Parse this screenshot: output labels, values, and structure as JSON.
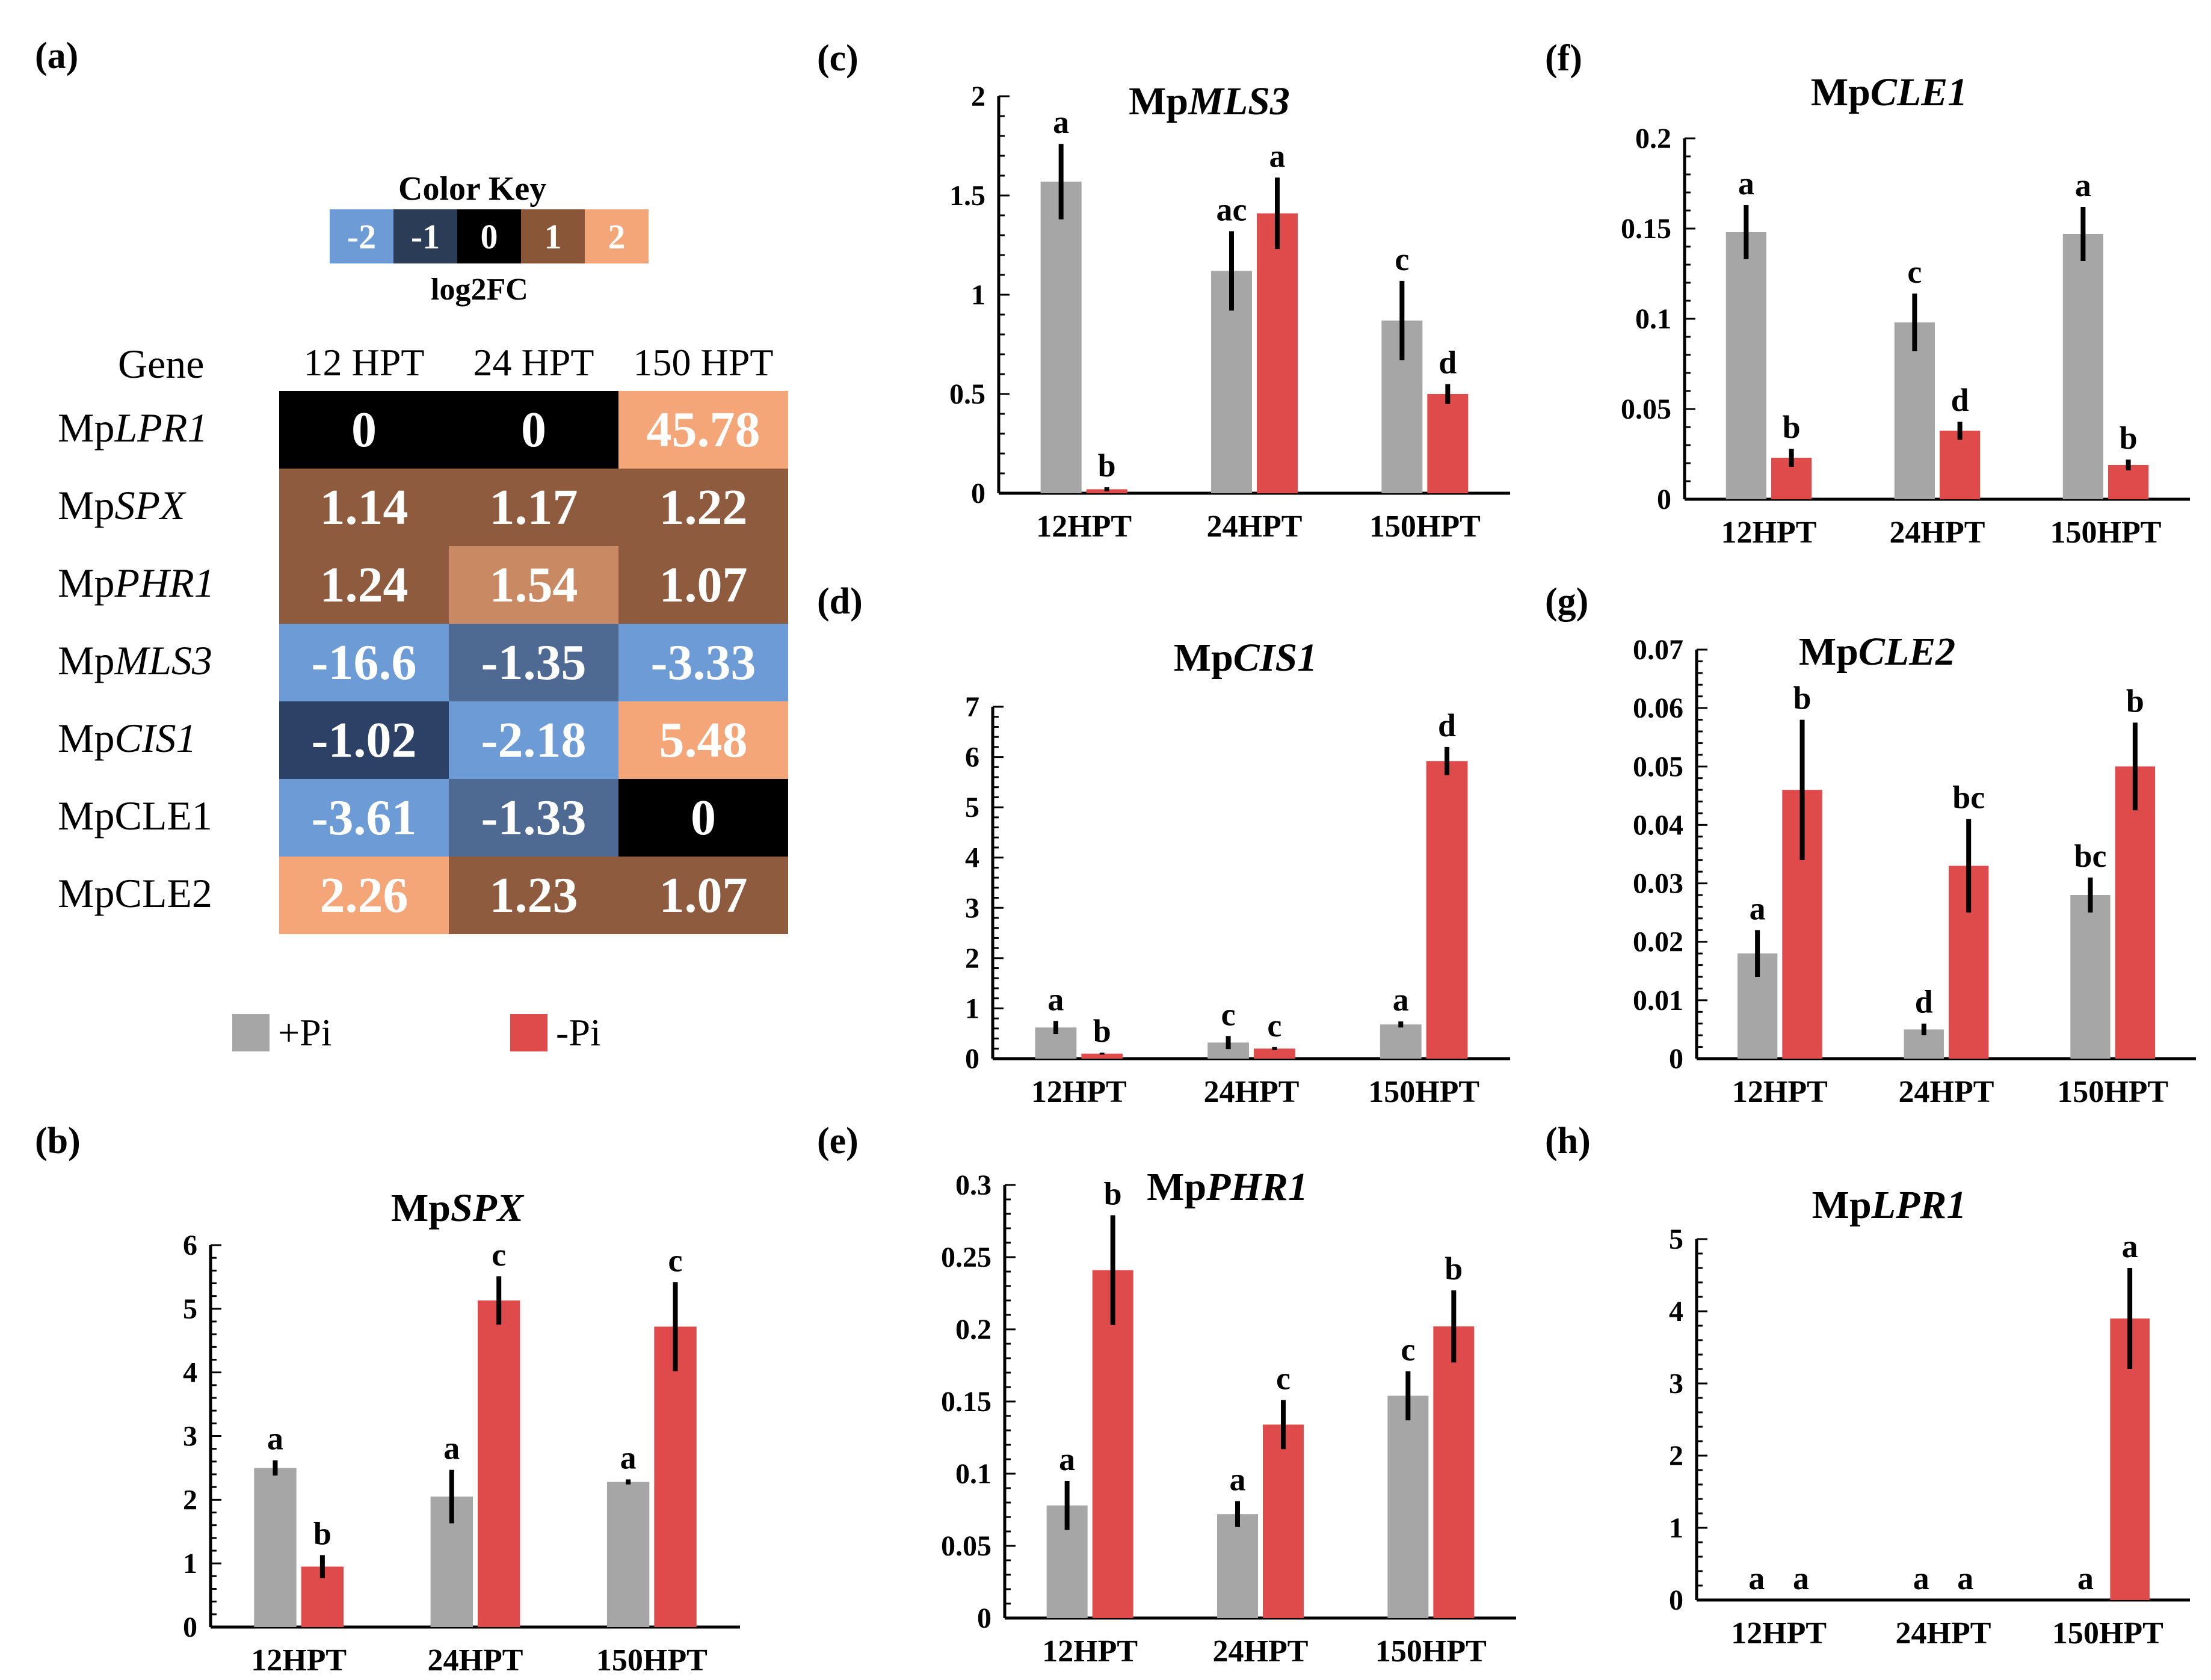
{
  "panel_labels": {
    "a": "(a)",
    "b": "(b)",
    "c": "(c)",
    "d": "(d)",
    "e": "(e)",
    "f": "(f)",
    "g": "(g)",
    "h": "(h)"
  },
  "colors": {
    "plus_pi": "#a6a6a6",
    "minus_pi": "#df4b4b",
    "key_m2": "#6d9bd6",
    "key_m1": "#2b3c57",
    "key_0": "#000000",
    "key_1": "#8a5638",
    "key_2": "#f4a678",
    "hm_orange": "#f4a678",
    "hm_brown": "#8e5b3f",
    "hm_tan": "#c98a63",
    "hm_blue": "#6d9bd6",
    "hm_navy": "#2d4166",
    "hm_slate": "#4e6a92",
    "hm_black": "#000000"
  },
  "color_key": {
    "title": "Color Key",
    "subtitle": "log2FC",
    "items": [
      {
        "label": "-2",
        "color": "#6d9bd6"
      },
      {
        "label": "-1",
        "color": "#2b3c57"
      },
      {
        "label": "0",
        "color": "#000000"
      },
      {
        "label": "1",
        "color": "#8a5638"
      },
      {
        "label": "2",
        "color": "#f4a678"
      }
    ]
  },
  "heatmap": {
    "gene_header": "Gene",
    "columns": [
      "12 HPT",
      "24 HPT",
      "150 HPT"
    ],
    "rows": [
      {
        "prefix": "Mp",
        "gene": "LPR1",
        "italic": true,
        "values": [
          "0",
          "0",
          "45.78"
        ],
        "colors": [
          "#000000",
          "#000000",
          "#f4a678"
        ]
      },
      {
        "prefix": "Mp",
        "gene": "SPX",
        "italic": true,
        "values": [
          "1.14",
          "1.17",
          "1.22"
        ],
        "colors": [
          "#8e5b3f",
          "#8e5b3f",
          "#8e5b3f"
        ]
      },
      {
        "prefix": "Mp",
        "gene": "PHR1",
        "italic": true,
        "values": [
          "1.24",
          "1.54",
          "1.07"
        ],
        "colors": [
          "#8e5b3f",
          "#c98a63",
          "#8e5b3f"
        ]
      },
      {
        "prefix": "Mp",
        "gene": "MLS3",
        "italic": true,
        "values": [
          "-16.6",
          "-1.35",
          "-3.33"
        ],
        "colors": [
          "#6d9bd6",
          "#4e6a92",
          "#6d9bd6"
        ]
      },
      {
        "prefix": "Mp",
        "gene": "CIS1",
        "italic": true,
        "values": [
          "-1.02",
          "-2.18",
          "5.48"
        ],
        "colors": [
          "#2d4166",
          "#6d9bd6",
          "#f4a678"
        ]
      },
      {
        "prefix": "Mp",
        "gene": "CLE1",
        "italic": false,
        "values": [
          "-3.61",
          "-1.33",
          "0"
        ],
        "colors": [
          "#6d9bd6",
          "#4e6a92",
          "#000000"
        ]
      },
      {
        "prefix": "Mp",
        "gene": "CLE2",
        "italic": false,
        "values": [
          "2.26",
          "1.23",
          "1.07"
        ],
        "colors": [
          "#f4a678",
          "#8e5b3f",
          "#8e5b3f"
        ]
      }
    ]
  },
  "legend": [
    {
      "label": "+Pi",
      "color": "#a6a6a6"
    },
    {
      "label": "-Pi",
      "color": "#df4b4b"
    }
  ],
  "chart_data": [
    {
      "id": "b",
      "type": "bar",
      "title_prefix": "Mp",
      "title_gene": "SPX",
      "categories": [
        "12HPT",
        "24HPT",
        "150HPT"
      ],
      "ylim": [
        0,
        6
      ],
      "yticks": [
        "0",
        "1",
        "2",
        "3",
        "4",
        "5",
        "6"
      ],
      "ytick_values": [
        0,
        1,
        2,
        3,
        4,
        5,
        6
      ],
      "series": [
        {
          "name": "+Pi",
          "values": [
            2.5,
            2.05,
            2.28
          ],
          "errors": [
            0.12,
            0.42,
            0.04
          ],
          "letters": [
            "a",
            "a",
            "a"
          ]
        },
        {
          "name": "-Pi",
          "values": [
            0.95,
            5.13,
            4.72
          ],
          "errors": [
            0.18,
            0.38,
            0.7
          ],
          "letters": [
            "b",
            "c",
            "c"
          ]
        }
      ]
    },
    {
      "id": "c",
      "type": "bar",
      "title_prefix": "Mp",
      "title_gene": "MLS3",
      "categories": [
        "12HPT",
        "24HPT",
        "150HPT"
      ],
      "ylim": [
        0,
        2
      ],
      "yticks": [
        "0",
        "0.5",
        "1",
        "1.5",
        "2"
      ],
      "ytick_values": [
        0,
        0.5,
        1,
        1.5,
        2
      ],
      "series": [
        {
          "name": "+Pi",
          "values": [
            1.57,
            1.12,
            0.87
          ],
          "errors": [
            0.19,
            0.2,
            0.2
          ],
          "letters": [
            "a",
            "ac",
            "c"
          ]
        },
        {
          "name": "-Pi",
          "values": [
            0.02,
            1.41,
            0.5
          ],
          "errors": [
            0.01,
            0.18,
            0.05
          ],
          "letters": [
            "b",
            "a",
            "d"
          ]
        }
      ]
    },
    {
      "id": "d",
      "type": "bar",
      "title_prefix": "Mp",
      "title_gene": "CIS1",
      "categories": [
        "12HPT",
        "24HPT",
        "150HPT"
      ],
      "ylim": [
        0,
        7
      ],
      "yticks": [
        "0",
        "1",
        "2",
        "3",
        "4",
        "5",
        "6",
        "7"
      ],
      "ytick_values": [
        0,
        1,
        2,
        3,
        4,
        5,
        6,
        7
      ],
      "series": [
        {
          "name": "+Pi",
          "values": [
            0.62,
            0.32,
            0.68
          ],
          "errors": [
            0.13,
            0.13,
            0.06
          ],
          "letters": [
            "a",
            "c",
            "a"
          ]
        },
        {
          "name": "-Pi",
          "values": [
            0.1,
            0.2,
            5.92
          ],
          "errors": [
            0.02,
            0.03,
            0.28
          ],
          "letters": [
            "b",
            "c",
            "d"
          ]
        }
      ]
    },
    {
      "id": "e",
      "type": "bar",
      "title_prefix": "Mp",
      "title_gene": "PHR1",
      "categories": [
        "12HPT",
        "24HPT",
        "150HPT"
      ],
      "ylim": [
        0,
        0.3
      ],
      "yticks": [
        "0",
        "0.05",
        "0.1",
        "0.15",
        "0.2",
        "0.25",
        "0.3"
      ],
      "ytick_values": [
        0,
        0.05,
        0.1,
        0.15,
        0.2,
        0.25,
        0.3
      ],
      "series": [
        {
          "name": "+Pi",
          "values": [
            0.078,
            0.072,
            0.154
          ],
          "errors": [
            0.017,
            0.009,
            0.017
          ],
          "letters": [
            "a",
            "a",
            "c"
          ]
        },
        {
          "name": "-Pi",
          "values": [
            0.241,
            0.134,
            0.202
          ],
          "errors": [
            0.038,
            0.017,
            0.025
          ],
          "letters": [
            "b",
            "c",
            "b"
          ]
        }
      ]
    },
    {
      "id": "f",
      "type": "bar",
      "title_prefix": "Mp",
      "title_gene": "CLE1",
      "categories": [
        "12HPT",
        "24HPT",
        "150HPT"
      ],
      "ylim": [
        0,
        0.2
      ],
      "yticks": [
        "0",
        "0.05",
        "0.1",
        "0.15",
        "0.2"
      ],
      "ytick_values": [
        0,
        0.05,
        0.1,
        0.15,
        0.2
      ],
      "series": [
        {
          "name": "+Pi",
          "values": [
            0.148,
            0.098,
            0.147
          ],
          "errors": [
            0.015,
            0.016,
            0.015
          ],
          "letters": [
            "a",
            "c",
            "a"
          ]
        },
        {
          "name": "-Pi",
          "values": [
            0.023,
            0.038,
            0.019
          ],
          "errors": [
            0.005,
            0.005,
            0.003
          ],
          "letters": [
            "b",
            "d",
            "b"
          ]
        }
      ]
    },
    {
      "id": "g",
      "type": "bar",
      "title_prefix": "Mp",
      "title_gene": "CLE2",
      "categories": [
        "12HPT",
        "24HPT",
        "150HPT"
      ],
      "ylim": [
        0,
        0.07
      ],
      "yticks": [
        "0",
        "0.01",
        "0.02",
        "0.03",
        "0.04",
        "0.05",
        "0.06",
        "0.07"
      ],
      "ytick_values": [
        0,
        0.01,
        0.02,
        0.03,
        0.04,
        0.05,
        0.06,
        0.07
      ],
      "series": [
        {
          "name": "+Pi",
          "values": [
            0.018,
            0.005,
            0.028
          ],
          "errors": [
            0.004,
            0.001,
            0.003
          ],
          "letters": [
            "a",
            "d",
            "bc"
          ]
        },
        {
          "name": "-Pi",
          "values": [
            0.046,
            0.033,
            0.05
          ],
          "errors": [
            0.012,
            0.008,
            0.0075
          ],
          "letters": [
            "b",
            "bc",
            "b"
          ]
        }
      ]
    },
    {
      "id": "h",
      "type": "bar",
      "title_prefix": "Mp",
      "title_gene": "LPR1",
      "categories": [
        "12HPT",
        "24HPT",
        "150HPT"
      ],
      "ylim": [
        0,
        5
      ],
      "yticks": [
        "0",
        "1",
        "2",
        "3",
        "4",
        "5"
      ],
      "ytick_values": [
        0,
        1,
        2,
        3,
        4,
        5
      ],
      "series": [
        {
          "name": "+Pi",
          "values": [
            0,
            0,
            0
          ],
          "errors": [
            0,
            0,
            0
          ],
          "letters": [
            "a",
            "a",
            "a"
          ]
        },
        {
          "name": "-Pi",
          "values": [
            0,
            0,
            3.9
          ],
          "errors": [
            0,
            0,
            0.7
          ],
          "letters": [
            "a",
            "a",
            "a"
          ]
        }
      ]
    }
  ]
}
